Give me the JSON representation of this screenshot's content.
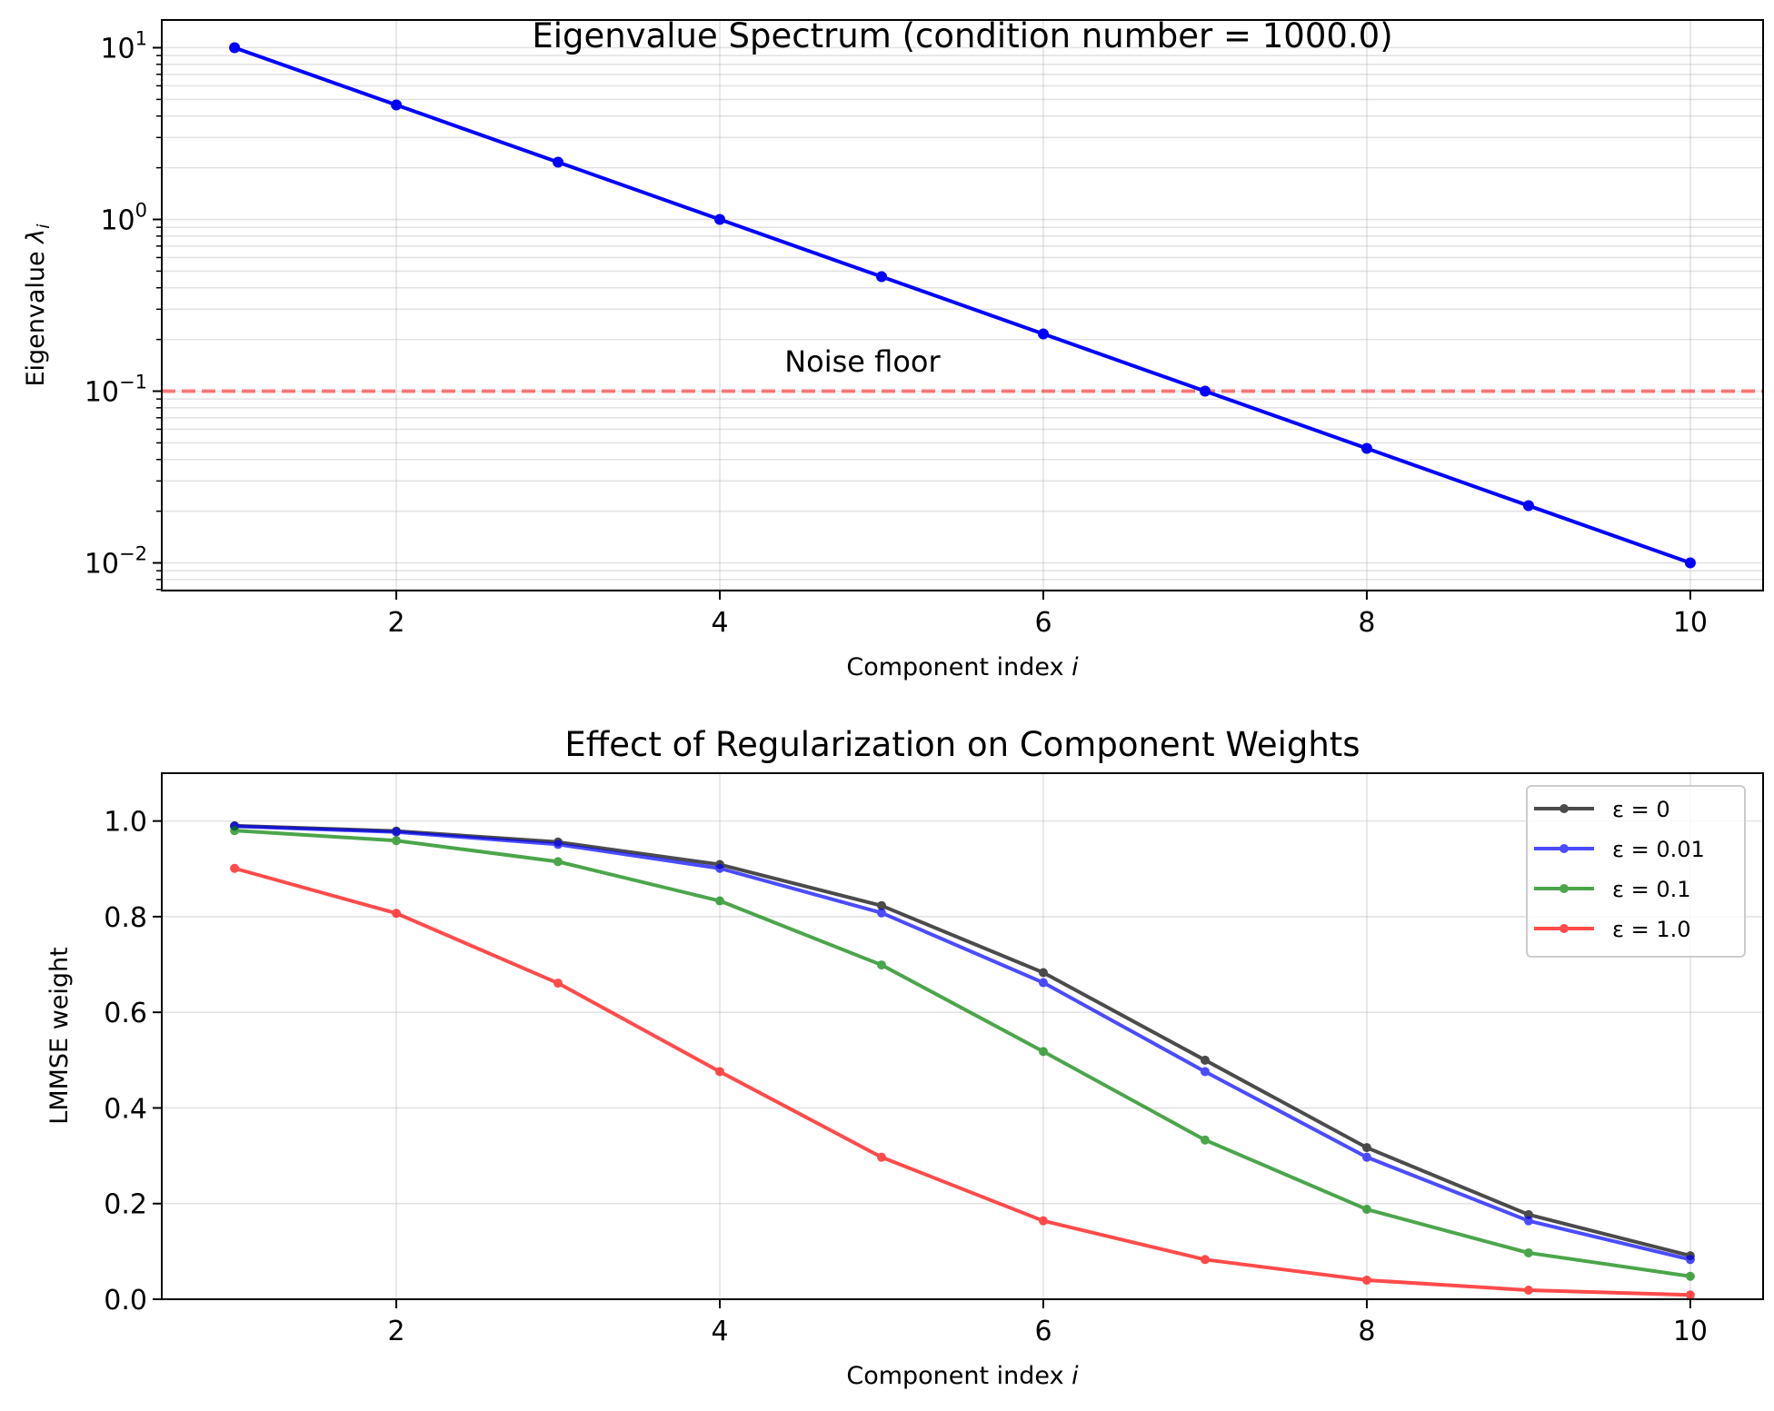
{
  "chart_data": [
    {
      "type": "line",
      "title": "Eigenvalue Spectrum (condition number = 1000.0)",
      "xlabel": "Component index i",
      "ylabel": "Eigenvalue λ_i",
      "yscale": "log",
      "xlim": [
        0.55,
        10.45
      ],
      "ylim": [
        0.0069,
        14.5
      ],
      "xticks": [
        2,
        4,
        6,
        8,
        10
      ],
      "xtick_labels": [
        "2",
        "4",
        "6",
        "8",
        "10"
      ],
      "yticks": [
        0.01,
        0.1,
        1,
        10
      ],
      "ytick_labels": [
        {
          "base": "10",
          "exp": "−2"
        },
        {
          "base": "10",
          "exp": "−1"
        },
        {
          "base": "10",
          "exp": "0"
        },
        {
          "base": "10",
          "exp": "1"
        }
      ],
      "grid": true,
      "series": [
        {
          "name": "eigenvalues",
          "color": "#0000ff",
          "x": [
            1,
            2,
            3,
            4,
            5,
            6,
            7,
            8,
            9,
            10
          ],
          "values": [
            10.0,
            4.642,
            2.154,
            1.0,
            0.4642,
            0.2154,
            0.1,
            0.04642,
            0.02154,
            0.01
          ]
        }
      ],
      "reference_lines": [
        {
          "orientation": "horizontal",
          "y": 0.1,
          "style": "dashed",
          "color": "#ff0000",
          "alpha": 0.5
        }
      ],
      "annotations": [
        {
          "text": "Noise floor",
          "x": 4.4,
          "y": 0.15,
          "color": "#ff0000"
        }
      ]
    },
    {
      "type": "line",
      "title": "Effect of Regularization on Component Weights",
      "xlabel": "Component index i",
      "ylabel": "LMMSE weight",
      "xlim": [
        0.55,
        10.45
      ],
      "ylim": [
        0.0,
        1.1
      ],
      "xticks": [
        2,
        4,
        6,
        8,
        10
      ],
      "xtick_labels": [
        "2",
        "4",
        "6",
        "8",
        "10"
      ],
      "yticks": [
        0.0,
        0.2,
        0.4,
        0.6,
        0.8,
        1.0
      ],
      "ytick_labels": [
        "0.0",
        "0.2",
        "0.4",
        "0.6",
        "0.8",
        "1.0"
      ],
      "grid": true,
      "legend": {
        "position": "top-right"
      },
      "x": [
        1,
        2,
        3,
        4,
        5,
        6,
        7,
        8,
        9,
        10
      ],
      "series": [
        {
          "name": "ε = 0",
          "color": "#000000",
          "alpha": 0.7,
          "values": [
            0.99,
            0.979,
            0.956,
            0.909,
            0.823,
            0.683,
            0.5,
            0.317,
            0.177,
            0.091
          ]
        },
        {
          "name": "ε = 0.01",
          "color": "#0000ff",
          "alpha": 0.7,
          "values": [
            0.989,
            0.977,
            0.951,
            0.901,
            0.808,
            0.662,
            0.476,
            0.297,
            0.164,
            0.083
          ]
        },
        {
          "name": "ε = 0.1",
          "color": "#008000",
          "alpha": 0.7,
          "values": [
            0.98,
            0.959,
            0.915,
            0.833,
            0.699,
            0.518,
            0.333,
            0.188,
            0.097,
            0.048
          ]
        },
        {
          "name": "ε = 1.0",
          "color": "#ff0000",
          "alpha": 0.7,
          "values": [
            0.901,
            0.807,
            0.661,
            0.476,
            0.297,
            0.164,
            0.083,
            0.04,
            0.019,
            0.009
          ]
        }
      ]
    }
  ]
}
